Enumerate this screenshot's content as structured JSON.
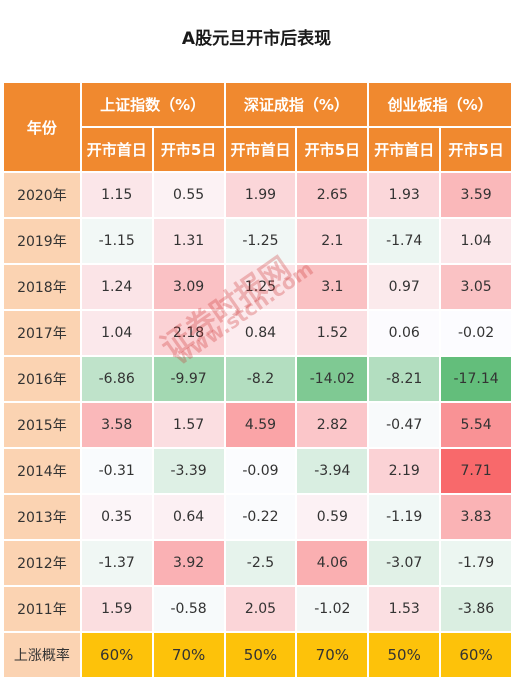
{
  "title": "A股元旦开市后表现",
  "header": {
    "year": "年份",
    "groups": [
      "上证指数（%）",
      "深证成指（%）",
      "创业板指（%）"
    ],
    "sub": [
      "开市首日",
      "开市5日",
      "开市首日",
      "开市5日",
      "开市首日",
      "开市5日"
    ]
  },
  "chart_data": {
    "type": "table",
    "title": "A股元旦开市后表现",
    "columns": [
      "上证指数（%）开市首日",
      "上证指数（%）开市5日",
      "深证成指（%）开市首日",
      "深证成指（%）开市5日",
      "创业板指（%）开市首日",
      "创业板指（%）开市5日"
    ],
    "rows": [
      {
        "year": "2020年",
        "values": [
          "1.15",
          "0.55",
          "1.99",
          "2.65",
          "1.93",
          "3.59"
        ]
      },
      {
        "year": "2019年",
        "values": [
          "-1.15",
          "1.31",
          "-1.25",
          "2.1",
          "-1.74",
          "1.04"
        ]
      },
      {
        "year": "2018年",
        "values": [
          "1.24",
          "3.09",
          "1.25",
          "3.1",
          "0.97",
          "3.05"
        ]
      },
      {
        "year": "2017年",
        "values": [
          "1.04",
          "2.18",
          "0.84",
          "1.52",
          "0.06",
          "-0.02"
        ]
      },
      {
        "year": "2016年",
        "values": [
          "-6.86",
          "-9.97",
          "-8.2",
          "-14.02",
          "-8.21",
          "-17.14"
        ]
      },
      {
        "year": "2015年",
        "values": [
          "3.58",
          "1.57",
          "4.59",
          "2.82",
          "-0.47",
          "5.54"
        ]
      },
      {
        "year": "2014年",
        "values": [
          "-0.31",
          "-3.39",
          "-0.09",
          "-3.94",
          "2.19",
          "7.71"
        ]
      },
      {
        "year": "2013年",
        "values": [
          "0.35",
          "0.64",
          "-0.22",
          "0.59",
          "-1.19",
          "3.83"
        ]
      },
      {
        "year": "2012年",
        "values": [
          "-1.37",
          "3.92",
          "-2.5",
          "4.06",
          "-3.07",
          "-1.79"
        ]
      },
      {
        "year": "2011年",
        "values": [
          "1.59",
          "-0.58",
          "2.05",
          "-1.02",
          "1.53",
          "-3.86"
        ]
      }
    ],
    "summary": {
      "label": "上涨概率",
      "values": [
        "60%",
        "70%",
        "50%",
        "70%",
        "50%",
        "60%"
      ]
    }
  },
  "watermark": [
    "证券时报网",
    "www.stcn.com"
  ],
  "colors": {
    "header": "#f0892f",
    "year_cell": "#fbd3b2",
    "summary_row": "#fdc20a",
    "max_positive": "#f8696b",
    "max_negative": "#63be7b",
    "neutral": "#fcfcff"
  }
}
